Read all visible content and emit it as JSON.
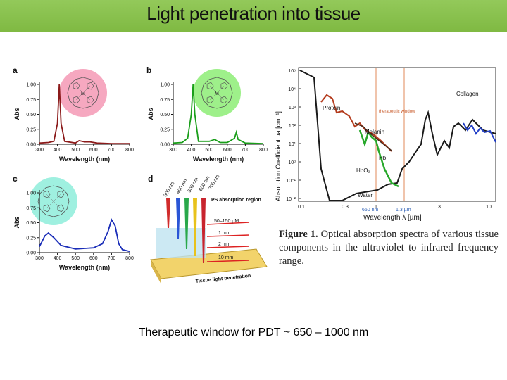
{
  "slide": {
    "title": "Light penetration into tissue",
    "bottom_caption": "Therapeutic window for PDT ~ 650 – 1000 nm"
  },
  "spectra_panels": {
    "axis": {
      "ylabel": "Abs",
      "xlabel": "Wavelength (nm)",
      "y_ticks": [
        "1.00",
        "0.75",
        "0.50",
        "0.25",
        "0.00"
      ],
      "x_ticks": [
        "300",
        "400",
        "500",
        "600",
        "700",
        "800"
      ]
    },
    "panels": [
      {
        "letter": "a",
        "color": "#8b1a1a",
        "circle_color": "#f6a8c0",
        "center_atom": "M",
        "chart_data": {
          "type": "line",
          "x": [
            300,
            350,
            380,
            400,
            410,
            420,
            440,
            500,
            520,
            550,
            580,
            620,
            700,
            800
          ],
          "y": [
            0.02,
            0.03,
            0.05,
            0.35,
            1.0,
            0.35,
            0.05,
            0.02,
            0.06,
            0.04,
            0.04,
            0.02,
            0.01,
            0.01
          ]
        }
      },
      {
        "letter": "b",
        "color": "#1a9e1a",
        "circle_color": "#9ef08a",
        "center_atom": "M",
        "chart_data": {
          "type": "line",
          "x": [
            300,
            350,
            380,
            400,
            410,
            420,
            440,
            500,
            530,
            560,
            600,
            640,
            650,
            660,
            700,
            800
          ],
          "y": [
            0.02,
            0.03,
            0.1,
            0.5,
            1.0,
            0.5,
            0.05,
            0.05,
            0.08,
            0.03,
            0.03,
            0.1,
            0.2,
            0.08,
            0.02,
            0.01
          ]
        }
      },
      {
        "letter": "c",
        "color": "#1a2db8",
        "circle_color": "#9ff0e0",
        "chart_data": {
          "type": "line",
          "x": [
            300,
            330,
            350,
            380,
            420,
            500,
            600,
            650,
            680,
            700,
            720,
            740,
            760,
            800
          ],
          "y": [
            0.1,
            0.28,
            0.33,
            0.25,
            0.12,
            0.06,
            0.08,
            0.15,
            0.35,
            0.55,
            0.45,
            0.15,
            0.05,
            0.02
          ]
        }
      }
    ]
  },
  "panel_d": {
    "letter": "d",
    "region_label": "PS absorption region",
    "depth_label": "Tissue light penetration",
    "wavelengths": [
      "300 nm",
      "400 nm",
      "500 nm",
      "600 nm",
      "700 nm"
    ],
    "depths": [
      "50–150 µM",
      "1 mm",
      "2 mm",
      "10 mm"
    ]
  },
  "absorption_plot": {
    "ylabel": "Absorption Coefficient µa [cm⁻¹]",
    "xlabel": "Wavelength λ [µm]",
    "y_ticks": [
      "10⁵",
      "10⁴",
      "10³",
      "10²",
      "10¹",
      "10⁰",
      "10⁻¹",
      "10⁻²"
    ],
    "x_ticks": [
      "0.1",
      "0.3",
      "1",
      "3",
      "10"
    ],
    "labels": {
      "protein": "Protein",
      "therapeutic": "therapeutic window",
      "melanin": "Melanin",
      "hb": "Hb",
      "hbo2": "HbO₂",
      "water": "Water",
      "collagen": "Collagen",
      "nm650": "650 nm",
      "um13": "1.3 µm"
    }
  },
  "figure_caption": {
    "label": "Figure 1.",
    "text": "Optical absorption spectra of various tissue components in the ultraviolet to infrared frequency range."
  }
}
